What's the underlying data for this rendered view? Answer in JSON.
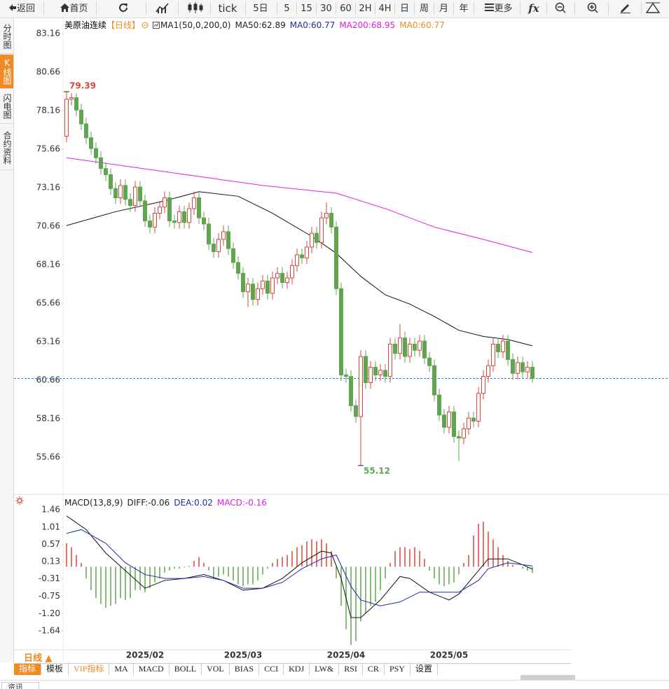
{
  "ui": {
    "toolbar": [
      "返回",
      "首页",
      "tick",
      "5日",
      "5",
      "15",
      "30",
      "60",
      "2H",
      "4H",
      "日",
      "周",
      "月",
      "年",
      "更多",
      "fx"
    ],
    "side_tabs": [
      "分时图",
      "K线图",
      "闪电图",
      "合约资料"
    ],
    "period_selector": "日线 ▲",
    "indicator_tabs": [
      "指标",
      "模板",
      "VIP指标",
      "MA",
      "MACD",
      "BOLL",
      "VOL",
      "BIAS",
      "CCI",
      "KDJ",
      "LW&",
      "RSI",
      "CR",
      "PSY",
      "设置"
    ],
    "footer": "资讯"
  },
  "chart_data": [
    {
      "type": "candlestick",
      "title": "美原油连续",
      "period": "【日线】",
      "legend": [
        {
          "text": "MA1(50,0,200,0)",
          "color": "#222222"
        },
        {
          "text": "MA50:62.89",
          "color": "#222222"
        },
        {
          "text": "MA0:60.77",
          "color": "#1b2fa8"
        },
        {
          "text": "MA200:68.95",
          "color": "#e020e0"
        },
        {
          "text": "MA0:60.77",
          "color": "#f08a24"
        }
      ],
      "up_color": "#d8453b",
      "down_color": "#5fa54e",
      "last_line_color": "#3a7fc0",
      "categories": [
        null,
        null,
        null,
        null,
        null,
        null,
        null,
        null,
        null,
        null,
        null,
        null,
        null,
        null,
        null,
        null,
        "2025/02",
        null,
        null,
        null,
        null,
        null,
        null,
        null,
        null,
        null,
        null,
        null,
        null,
        null,
        null,
        null,
        null,
        null,
        null,
        null,
        "2025/03",
        null,
        null,
        null,
        null,
        null,
        null,
        null,
        null,
        null,
        null,
        null,
        null,
        null,
        null,
        null,
        null,
        null,
        null,
        null,
        null,
        "2025/04",
        null,
        null,
        null,
        null,
        null,
        null,
        null,
        null,
        null,
        null,
        null,
        null,
        null,
        null,
        null,
        null,
        null,
        null,
        null,
        null,
        "2025/05",
        null,
        null,
        null,
        null,
        null,
        null,
        null,
        null,
        null,
        null,
        null,
        null,
        null,
        null,
        null,
        null,
        null
      ],
      "open": [
        76.5,
        78.9,
        79.0,
        78.2,
        77.3,
        76.4,
        75.7,
        75.1,
        74.4,
        74.0,
        73.1,
        72.5,
        73.3,
        72.4,
        72.0,
        73.2,
        72.3,
        71.0,
        70.6,
        71.5,
        71.9,
        72.5,
        71.0,
        70.9,
        71.6,
        70.9,
        71.8,
        72.5,
        71.2,
        70.8,
        69.5,
        69.0,
        69.8,
        70.3,
        69.2,
        68.3,
        67.6,
        66.4,
        66.9,
        65.9,
        66.6,
        67.1,
        66.3,
        67.3,
        67.6,
        67.0,
        67.3,
        68.1,
        68.8,
        68.6,
        69.3,
        70.2,
        69.6,
        71.2,
        71.5,
        70.6,
        66.6,
        61.0,
        60.9,
        59.0,
        58.3,
        62.2,
        60.5,
        61.5,
        61.0,
        61.3,
        60.9,
        63.0,
        62.4,
        63.4,
        62.2,
        63.0,
        62.6,
        63.2,
        62.1,
        61.6,
        59.7,
        58.4,
        57.6,
        58.6,
        57.0,
        56.9,
        57.5,
        58.2,
        58.0,
        59.8,
        60.9,
        61.6,
        63.0,
        62.5,
        63.2,
        62.0,
        61.1,
        61.8,
        61.2,
        61.5
      ],
      "high": [
        79.39,
        79.3,
        79.3,
        78.6,
        77.7,
        76.8,
        76.1,
        75.5,
        74.8,
        74.4,
        73.5,
        73.7,
        73.7,
        72.8,
        73.6,
        73.6,
        72.7,
        71.4,
        71.9,
        72.3,
        72.9,
        72.9,
        71.4,
        72.0,
        72.0,
        72.2,
        72.9,
        72.9,
        71.6,
        71.2,
        69.9,
        70.2,
        70.7,
        70.7,
        69.6,
        68.7,
        68.0,
        67.3,
        67.3,
        67.0,
        67.5,
        67.5,
        67.7,
        68.0,
        68.0,
        67.7,
        68.5,
        69.2,
        69.2,
        69.7,
        70.6,
        70.6,
        71.6,
        72.2,
        71.9,
        71.0,
        67.0,
        61.4,
        61.3,
        59.4,
        62.6,
        62.6,
        61.9,
        61.9,
        61.7,
        61.7,
        63.4,
        63.4,
        64.3,
        63.8,
        63.4,
        63.4,
        63.6,
        63.6,
        62.5,
        62.0,
        60.1,
        58.8,
        59.0,
        59.0,
        57.4,
        57.9,
        58.6,
        58.6,
        60.2,
        61.3,
        62.0,
        63.4,
        63.4,
        63.6,
        63.6,
        62.4,
        62.2,
        62.2,
        61.9,
        61.9
      ],
      "low": [
        76.1,
        78.5,
        77.8,
        76.9,
        76.0,
        75.3,
        74.7,
        74.0,
        73.6,
        72.7,
        72.1,
        72.1,
        72.0,
        71.6,
        71.6,
        71.9,
        70.6,
        70.2,
        70.2,
        71.1,
        71.5,
        70.6,
        70.5,
        70.5,
        70.5,
        70.5,
        71.4,
        70.8,
        70.4,
        69.1,
        68.6,
        68.6,
        69.4,
        68.8,
        67.9,
        67.2,
        66.0,
        65.4,
        65.5,
        65.5,
        66.2,
        65.9,
        65.9,
        66.9,
        66.6,
        66.6,
        66.9,
        67.7,
        68.2,
        68.2,
        68.9,
        69.2,
        69.2,
        70.8,
        70.2,
        66.2,
        60.6,
        60.5,
        58.6,
        57.9,
        55.12,
        60.1,
        60.1,
        60.6,
        60.6,
        60.5,
        60.5,
        62.0,
        62.0,
        61.8,
        61.8,
        62.2,
        62.2,
        61.7,
        61.2,
        59.3,
        58.0,
        57.2,
        57.2,
        56.6,
        55.4,
        56.5,
        57.1,
        57.6,
        57.6,
        59.4,
        60.5,
        61.2,
        62.1,
        62.1,
        61.6,
        60.7,
        60.7,
        60.8,
        60.8,
        60.5
      ],
      "close": [
        78.9,
        79.0,
        78.2,
        77.3,
        76.4,
        75.7,
        75.1,
        74.4,
        74.0,
        73.1,
        72.5,
        73.3,
        72.4,
        72.0,
        73.2,
        72.3,
        71.0,
        70.6,
        71.5,
        71.9,
        72.5,
        71.0,
        70.9,
        71.6,
        70.9,
        71.8,
        72.5,
        71.2,
        70.8,
        69.5,
        69.0,
        69.8,
        70.3,
        69.2,
        68.3,
        67.6,
        66.4,
        66.9,
        65.9,
        66.6,
        67.1,
        66.3,
        67.3,
        67.6,
        67.0,
        67.3,
        68.1,
        68.8,
        68.6,
        69.3,
        70.2,
        69.6,
        71.2,
        71.5,
        70.6,
        66.6,
        61.0,
        60.9,
        59.0,
        58.3,
        62.2,
        60.5,
        61.5,
        61.0,
        61.3,
        60.9,
        63.0,
        62.4,
        63.4,
        62.2,
        63.0,
        62.6,
        63.2,
        62.1,
        61.6,
        59.7,
        58.4,
        57.6,
        58.6,
        57.0,
        56.9,
        57.5,
        58.2,
        58.0,
        59.8,
        60.9,
        61.6,
        63.0,
        62.5,
        63.2,
        62.0,
        61.1,
        61.8,
        61.2,
        61.5,
        60.77
      ],
      "ma_lines": [
        {
          "color": "#111111",
          "x": [
            0,
            10,
            20,
            27,
            35,
            42,
            50,
            55,
            60,
            65,
            70,
            75,
            80,
            85,
            90,
            95
          ],
          "values": [
            70.7,
            71.6,
            72.3,
            72.9,
            72.6,
            71.5,
            70.0,
            68.9,
            67.4,
            66.2,
            65.6,
            64.8,
            63.9,
            63.5,
            63.3,
            62.89
          ]
        },
        {
          "color": "#e020e0",
          "x": [
            0,
            20,
            40,
            55,
            65,
            75,
            85,
            95
          ],
          "values": [
            75.1,
            74.2,
            73.3,
            72.8,
            71.8,
            70.6,
            69.8,
            68.95
          ]
        }
      ],
      "ylim": [
        53.52,
        83.98
      ],
      "yticks": [
        83.16,
        80.66,
        78.16,
        75.66,
        73.16,
        70.66,
        68.16,
        65.66,
        63.16,
        60.66,
        58.16,
        55.66
      ]
    },
    {
      "type": "macd",
      "legend": [
        {
          "text": "MACD(13,8,9)",
          "color": "#222222"
        },
        {
          "text": "DIFF:-0.06",
          "color": "#222222"
        },
        {
          "text": "DEA:0.02",
          "color": "#1b2fa8"
        },
        {
          "text": "MACD:-0.16",
          "color": "#e020e0"
        }
      ],
      "up_color": "#d8453b",
      "down_color": "#5fa54e",
      "values": [
        0.6,
        0.5,
        0.3,
        0.1,
        -0.3,
        -0.6,
        -0.8,
        -0.95,
        -1.05,
        -1.0,
        -0.95,
        -0.8,
        -0.85,
        -0.8,
        -0.6,
        -0.6,
        -0.65,
        -0.55,
        -0.4,
        -0.3,
        -0.15,
        -0.1,
        -0.05,
        -0.05,
        -0.02,
        0.02,
        0.15,
        0.25,
        0.1,
        -0.1,
        -0.3,
        -0.25,
        -0.2,
        -0.25,
        -0.35,
        -0.45,
        -0.5,
        -0.45,
        -0.45,
        -0.35,
        -0.2,
        -0.05,
        0.1,
        0.2,
        0.25,
        0.3,
        0.4,
        0.5,
        0.55,
        0.65,
        0.7,
        0.65,
        0.7,
        0.6,
        0.4,
        -0.3,
        -1.0,
        -1.6,
        -2.0,
        -1.9,
        -1.4,
        -1.2,
        -1.0,
        -0.9,
        -0.6,
        -0.3,
        0.1,
        0.4,
        0.5,
        0.5,
        0.45,
        0.5,
        0.4,
        0.2,
        -0.1,
        -0.3,
        -0.45,
        -0.5,
        -0.45,
        -0.4,
        -0.2,
        0.1,
        0.3,
        0.8,
        1.1,
        1.15,
        0.9,
        0.7,
        0.5,
        0.3,
        0.15,
        0.05,
        0.0,
        -0.05,
        -0.1,
        -0.16
      ],
      "lines": [
        {
          "color": "#111111",
          "x": [
            0,
            4,
            8,
            12,
            16,
            20,
            24,
            28,
            32,
            36,
            40,
            44,
            48,
            52,
            54,
            56,
            58,
            60,
            64,
            68,
            70,
            74,
            78,
            80,
            84,
            86,
            90,
            93,
            95
          ],
          "values": [
            1.3,
            0.95,
            0.35,
            -0.1,
            -0.55,
            -0.35,
            -0.3,
            -0.2,
            -0.35,
            -0.6,
            -0.55,
            -0.3,
            0.1,
            0.4,
            0.35,
            -0.3,
            -1.3,
            -1.3,
            -0.85,
            -0.25,
            -0.3,
            -0.65,
            -0.85,
            -0.7,
            -0.1,
            0.2,
            0.2,
            0.05,
            -0.06
          ]
        },
        {
          "color": "#1b2fa8",
          "x": [
            0,
            3,
            8,
            12,
            16,
            20,
            24,
            28,
            32,
            36,
            40,
            44,
            48,
            52,
            55,
            58,
            60,
            64,
            68,
            72,
            76,
            80,
            84,
            86,
            90,
            95
          ],
          "values": [
            0.85,
            0.95,
            0.6,
            0.1,
            -0.2,
            -0.3,
            -0.3,
            -0.25,
            -0.35,
            -0.55,
            -0.55,
            -0.4,
            -0.05,
            0.2,
            0.3,
            -0.5,
            -0.85,
            -1.0,
            -0.9,
            -0.65,
            -0.65,
            -0.65,
            -0.35,
            -0.05,
            0.1,
            0.02
          ]
        }
      ],
      "ylim": [
        -2.07,
        1.69
      ],
      "yticks": [
        1.46,
        1.01,
        0.57,
        0.13,
        -0.31,
        -0.75,
        {
          "value": -1.2,
          "label": "-1.20"
        },
        -1.64
      ]
    }
  ]
}
